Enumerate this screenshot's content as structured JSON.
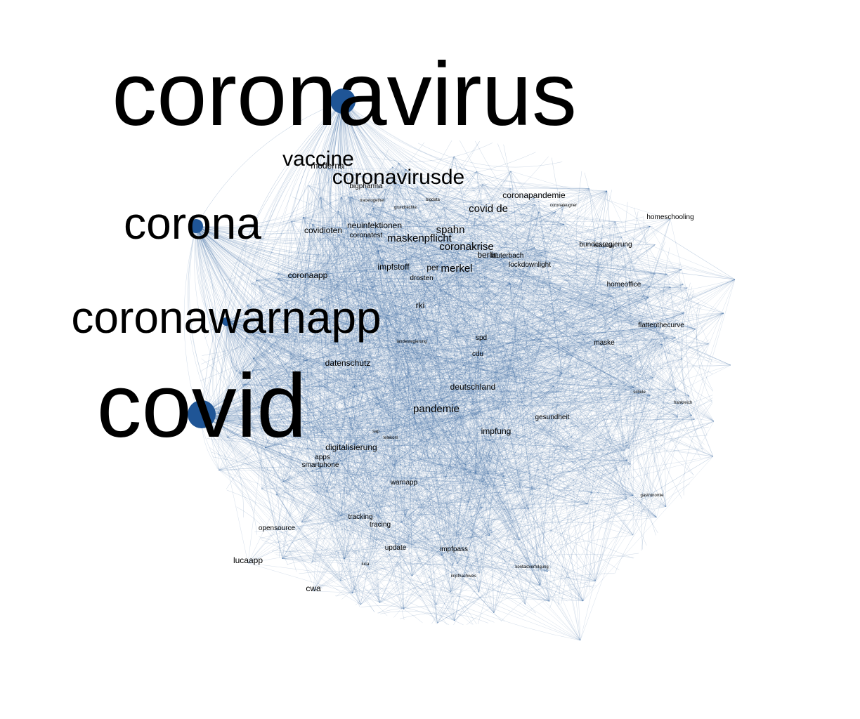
{
  "graph": {
    "type": "network",
    "edge_color": "#2e5f99",
    "node_color": "#1f5596",
    "background": "#ffffff",
    "hubs": [
      {
        "id": "coronavirus",
        "label": "coronavirus",
        "tier": 1
      },
      {
        "id": "covid",
        "label": "covid",
        "tier": 1
      },
      {
        "id": "coronawarnapp",
        "label": "coronawarnapp",
        "tier": 1
      },
      {
        "id": "corona",
        "label": "corona",
        "tier": 1
      }
    ],
    "labels": [
      {
        "id": "vaccine",
        "label": "vaccine",
        "tier": 2
      },
      {
        "id": "coronavirusde",
        "label": "coronavirusde",
        "tier": 2
      },
      {
        "id": "moderna",
        "label": "moderna",
        "tier": 4
      },
      {
        "id": "bigpharma",
        "label": "bigpharma",
        "tier": 5
      },
      {
        "id": "covidioten",
        "label": "covidioten",
        "tier": 4
      },
      {
        "id": "neuinfektionen",
        "label": "neuinfektionen",
        "tier": 4
      },
      {
        "id": "coronatest",
        "label": "coronatest",
        "tier": 5
      },
      {
        "id": "maskenpflicht",
        "label": "maskenpflicht",
        "tier": 3
      },
      {
        "id": "spahn",
        "label": "spahn",
        "tier": 3
      },
      {
        "id": "coronakrise",
        "label": "coronakrise",
        "tier": 3
      },
      {
        "id": "covid_de",
        "label": "covid de",
        "tier": 3
      },
      {
        "id": "coronapandemie",
        "label": "coronapandemie",
        "tier": 4
      },
      {
        "id": "berlin",
        "label": "berlin",
        "tier": 4
      },
      {
        "id": "merkel",
        "label": "merkel",
        "tier": 3
      },
      {
        "id": "impfstoff",
        "label": "impfstoff",
        "tier": 4
      },
      {
        "id": "per",
        "label": "per",
        "tier": 4
      },
      {
        "id": "drosten",
        "label": "drosten",
        "tier": 5
      },
      {
        "id": "coronaapp",
        "label": "coronaapp",
        "tier": 4
      },
      {
        "id": "rki",
        "label": "rki",
        "tier": 4
      },
      {
        "id": "datenschutz",
        "label": "datenschutz",
        "tier": 4
      },
      {
        "id": "deutschland",
        "label": "deutschland",
        "tier": 4
      },
      {
        "id": "pandemie",
        "label": "pandemie",
        "tier": 3
      },
      {
        "id": "impfung",
        "label": "impfung",
        "tier": 4
      },
      {
        "id": "digitalisierung",
        "label": "digitalisierung",
        "tier": 4
      },
      {
        "id": "apps",
        "label": "apps",
        "tier": 5
      },
      {
        "id": "smartphone",
        "label": "smartphone",
        "tier": 5
      },
      {
        "id": "warnapp",
        "label": "warnapp",
        "tier": 5
      },
      {
        "id": "homeoffice",
        "label": "homeoffice",
        "tier": 5
      },
      {
        "id": "homeschooling",
        "label": "homeschooling",
        "tier": 5
      },
      {
        "id": "lockdown",
        "label": "lockdownlight",
        "tier": 5
      },
      {
        "id": "lauterbach",
        "label": "lauterbach",
        "tier": 5
      },
      {
        "id": "flattenthecurve",
        "label": "flattenthecurve",
        "tier": 5
      },
      {
        "id": "maske",
        "label": "maske",
        "tier": 5
      },
      {
        "id": "cdu",
        "label": "cdu",
        "tier": 5
      },
      {
        "id": "spd",
        "label": "spd",
        "tier": 5
      },
      {
        "id": "bundesregierung",
        "label": "bundesregierung",
        "tier": 5
      },
      {
        "id": "gesundheit",
        "label": "gesundheit",
        "tier": 5
      },
      {
        "id": "tracking",
        "label": "tracking",
        "tier": 5
      },
      {
        "id": "tracing",
        "label": "tracing",
        "tier": 5
      },
      {
        "id": "opensource",
        "label": "opensource",
        "tier": 5
      },
      {
        "id": "lucaapp",
        "label": "lucaapp",
        "tier": 4
      },
      {
        "id": "cwa",
        "label": "cwa",
        "tier": 4
      },
      {
        "id": "update",
        "label": "update",
        "tier": 5
      },
      {
        "id": "impfpass",
        "label": "impfpass",
        "tier": 5
      },
      {
        "id": "luca",
        "label": "luca",
        "tier": 6
      },
      {
        "id": "sap",
        "label": "sap",
        "tier": 6
      },
      {
        "id": "telekom",
        "label": "telekom",
        "tier": 6
      },
      {
        "id": "grundrechte",
        "label": "grundrechte",
        "tier": 6
      },
      {
        "id": "bigdata",
        "label": "bigdata",
        "tier": 6
      },
      {
        "id": "tracetogether",
        "label": "tracetogether",
        "tier": 6
      },
      {
        "id": "coronaleugner",
        "label": "coronaleugner",
        "tier": 6
      },
      {
        "id": "bundestag",
        "label": "bundestag",
        "tier": 6
      },
      {
        "id": "schule",
        "label": "schule",
        "tier": 6
      },
      {
        "id": "impfnachweis",
        "label": "impfnachweis",
        "tier": 6
      },
      {
        "id": "kontaktverfolgung",
        "label": "kontaktverfolgung",
        "tier": 6
      },
      {
        "id": "gastronomie",
        "label": "gastronomie",
        "tier": 6
      },
      {
        "id": "frankreich",
        "label": "frankreich",
        "tier": 6
      },
      {
        "id": "lindenregierung",
        "label": "landesregierung",
        "tier": 6
      }
    ]
  }
}
